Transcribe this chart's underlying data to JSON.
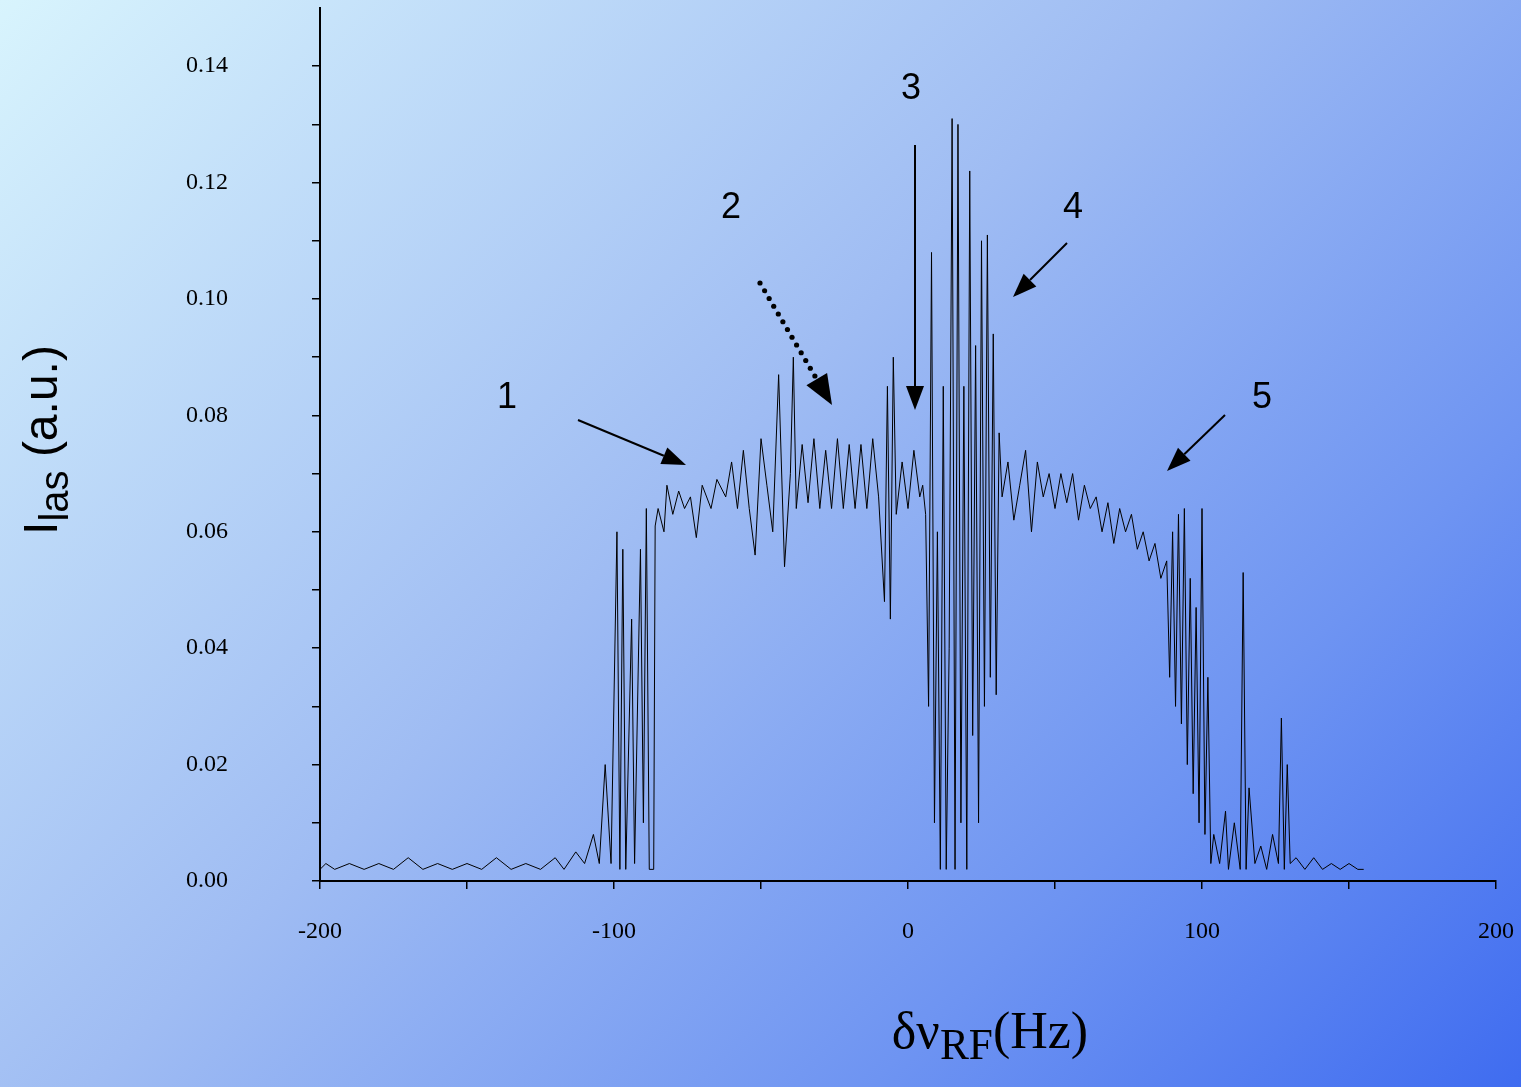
{
  "chart_data": {
    "type": "line",
    "xlabel": "δν$_{RF}$(Hz)",
    "ylabel": "I$_{las}$ (a.u.)",
    "annotations": [
      "1",
      "2",
      "3",
      "4",
      "5"
    ],
    "xlim": [
      -200,
      200
    ],
    "ylim": [
      0,
      0.15
    ],
    "xticks": [
      -200,
      {
        "value": -150,
        "label": null
      },
      -100,
      {
        "value": -50,
        "label": null
      },
      0,
      {
        "value": 50,
        "label": null
      },
      100,
      {
        "value": 150,
        "label": null
      },
      200
    ],
    "yticks": [
      {
        "value": 0,
        "label": "0.00"
      },
      {
        "value": 0.01,
        "label": null
      },
      {
        "value": 0.02,
        "label": "0.02"
      },
      {
        "value": 0.03,
        "label": null
      },
      {
        "value": 0.04,
        "label": "0.04"
      },
      {
        "value": 0.05,
        "label": null
      },
      {
        "value": 0.06,
        "label": "0.06"
      },
      {
        "value": 0.07,
        "label": null
      },
      {
        "value": 0.08,
        "label": "0.08"
      },
      {
        "value": 0.09,
        "label": null
      },
      {
        "value": 0.1,
        "label": "0.10"
      },
      {
        "value": 0.11,
        "label": null
      },
      {
        "value": 0.12,
        "label": "0.12"
      },
      {
        "value": 0.13,
        "label": null
      },
      {
        "value": 0.14,
        "label": "0.14"
      }
    ],
    "grid": false,
    "legend": false,
    "series": [
      {
        "color": "#000000",
        "x": [
          -200,
          -198,
          -195,
          -190,
          -185,
          -180,
          -175,
          -170,
          -165,
          -160,
          -155,
          -150,
          -145,
          -140,
          -135,
          -130,
          -125,
          -120,
          -117,
          -113,
          -110,
          -107,
          -105,
          -103,
          -101,
          -99,
          -98,
          -97,
          -96,
          -94,
          -93,
          -91,
          -90,
          -89,
          -88,
          -86.5,
          -86,
          -85,
          -83,
          -82,
          -80,
          -78,
          -76,
          -74,
          -72,
          -70,
          -67,
          -65,
          -62,
          -60,
          -58,
          -56,
          -54,
          -52,
          -50,
          -48,
          -46,
          -44,
          -42,
          -40,
          -39,
          -38,
          -36,
          -34,
          -32,
          -30,
          -28,
          -26,
          -24,
          -22,
          -20,
          -18,
          -16,
          -14,
          -12,
          -10,
          -8,
          -7,
          -6,
          -5,
          -4,
          -2,
          0,
          2,
          4,
          5,
          6,
          7,
          8,
          9,
          10,
          11,
          12,
          13,
          14,
          15,
          16,
          17,
          18,
          19,
          20,
          21,
          22,
          23,
          24,
          25,
          26,
          27,
          28,
          29,
          30,
          31,
          32,
          34,
          36,
          38,
          40,
          42,
          44,
          46,
          48,
          50,
          52,
          54,
          56,
          58,
          60,
          62,
          64,
          66,
          68,
          70,
          72,
          74,
          76,
          78,
          80,
          82,
          84,
          86,
          88,
          89,
          90,
          91,
          92,
          93,
          94,
          95,
          96,
          97,
          98,
          99,
          100,
          101,
          102,
          103,
          104,
          106,
          108,
          109,
          111,
          113,
          114,
          115,
          116,
          118,
          120,
          122,
          124,
          126,
          127,
          128,
          129,
          130,
          132,
          135,
          138,
          141,
          144,
          147,
          150,
          153,
          155
        ],
        "values": [
          0.002,
          0.003,
          0.002,
          0.003,
          0.002,
          0.003,
          0.002,
          0.004,
          0.002,
          0.003,
          0.002,
          0.003,
          0.002,
          0.004,
          0.002,
          0.003,
          0.002,
          0.004,
          0.002,
          0.005,
          0.003,
          0.008,
          0.003,
          0.02,
          0.003,
          0.06,
          0.002,
          0.057,
          0.002,
          0.045,
          0.003,
          0.057,
          0.01,
          0.064,
          0.002,
          0.002,
          0.061,
          0.064,
          0.06,
          0.068,
          0.063,
          0.067,
          0.064,
          0.066,
          0.059,
          0.068,
          0.064,
          0.069,
          0.066,
          0.072,
          0.064,
          0.074,
          0.064,
          0.056,
          0.076,
          0.068,
          0.06,
          0.087,
          0.054,
          0.07,
          0.09,
          0.064,
          0.075,
          0.065,
          0.076,
          0.064,
          0.074,
          0.064,
          0.076,
          0.064,
          0.075,
          0.064,
          0.075,
          0.064,
          0.076,
          0.066,
          0.048,
          0.085,
          0.045,
          0.09,
          0.063,
          0.072,
          0.064,
          0.074,
          0.066,
          0.068,
          0.063,
          0.03,
          0.108,
          0.01,
          0.06,
          0.002,
          0.085,
          0.002,
          0.04,
          0.131,
          0.002,
          0.13,
          0.01,
          0.085,
          0.002,
          0.122,
          0.025,
          0.092,
          0.01,
          0.11,
          0.03,
          0.111,
          0.035,
          0.094,
          0.032,
          0.077,
          0.066,
          0.072,
          0.062,
          0.068,
          0.074,
          0.06,
          0.072,
          0.066,
          0.07,
          0.064,
          0.07,
          0.065,
          0.07,
          0.062,
          0.068,
          0.064,
          0.066,
          0.06,
          0.065,
          0.058,
          0.064,
          0.06,
          0.063,
          0.057,
          0.06,
          0.055,
          0.058,
          0.052,
          0.055,
          0.035,
          0.06,
          0.03,
          0.063,
          0.027,
          0.064,
          0.02,
          0.052,
          0.015,
          0.047,
          0.01,
          0.064,
          0.008,
          0.035,
          0.003,
          0.008,
          0.003,
          0.012,
          0.002,
          0.01,
          0.002,
          0.053,
          0.002,
          0.016,
          0.003,
          0.006,
          0.002,
          0.008,
          0.003,
          0.028,
          0.002,
          0.02,
          0.003,
          0.004,
          0.002,
          0.004,
          0.002,
          0.003,
          0.002,
          0.003,
          0.002,
          0.002
        ]
      }
    ]
  }
}
